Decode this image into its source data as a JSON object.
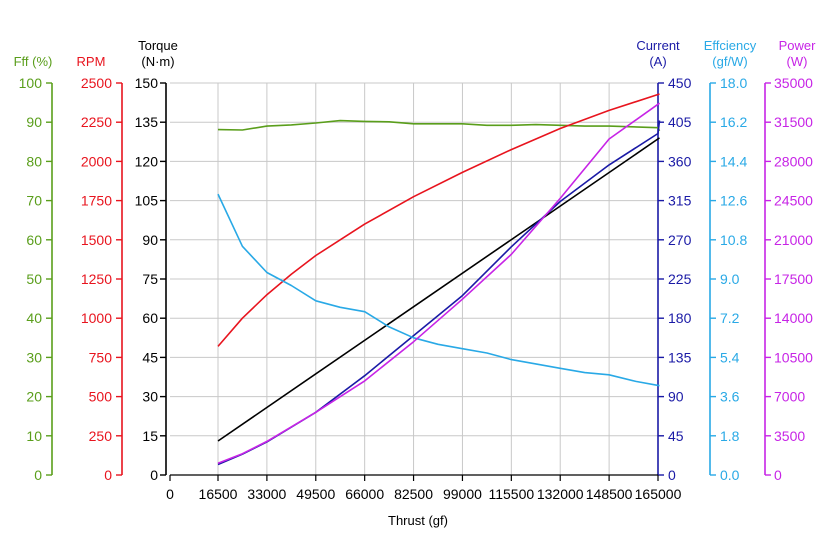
{
  "chart_data": {
    "type": "line",
    "xlabel": "Thrust (gf)",
    "x_ticks": [
      "0",
      "16500",
      "33000",
      "49500",
      "66000",
      "82500",
      "99000",
      "115500",
      "132000",
      "148500",
      "165000"
    ],
    "x_data_start": 16500,
    "x_data_end": 165000,
    "grid": true,
    "axes": [
      {
        "id": "fff",
        "title_lines": [
          "Fff (%)"
        ],
        "color": "#5a9e1b",
        "min": 0,
        "max": 100,
        "ticks": [
          "0",
          "10",
          "20",
          "30",
          "40",
          "50",
          "60",
          "70",
          "80",
          "90",
          "100"
        ]
      },
      {
        "id": "rpm",
        "title_lines": [
          "RPM"
        ],
        "color": "#e8141e",
        "min": 0,
        "max": 2500,
        "ticks": [
          "0",
          "250",
          "500",
          "750",
          "1000",
          "1250",
          "1500",
          "1750",
          "2000",
          "2250",
          "2500"
        ]
      },
      {
        "id": "torque",
        "title_lines": [
          "Torque",
          "(N·m)"
        ],
        "color": "#000000",
        "min": 0,
        "max": 150,
        "ticks": [
          "0",
          "15",
          "30",
          "45",
          "60",
          "75",
          "90",
          "105",
          "120",
          "135",
          "150"
        ]
      },
      {
        "id": "current",
        "title_lines": [
          "Current",
          "(A)"
        ],
        "color": "#1a1aa6",
        "min": 0,
        "max": 450,
        "ticks": [
          "0",
          "45",
          "90",
          "135",
          "180",
          "225",
          "270",
          "315",
          "360",
          "405",
          "450"
        ]
      },
      {
        "id": "efficiency",
        "title_lines": [
          "Effciency",
          "(gf/W)"
        ],
        "color": "#29a9e6",
        "min": 0,
        "max": 18,
        "ticks": [
          "0.0",
          "1.8",
          "3.6",
          "5.4",
          "7.2",
          "9.0",
          "10.8",
          "12.6",
          "14.4",
          "16.2",
          "18.0"
        ]
      },
      {
        "id": "power",
        "title_lines": [
          "Power",
          "(W)"
        ],
        "color": "#c724e6",
        "min": 0,
        "max": 35000,
        "ticks": [
          "0",
          "3500",
          "7000",
          "10500",
          "14000",
          "17500",
          "21000",
          "24500",
          "28000",
          "31500",
          "35000"
        ]
      }
    ],
    "series": [
      {
        "axis": "fff",
        "color": "#5a9e1b",
        "x": [
          16500,
          24750,
          33000,
          41250,
          49500,
          57750,
          66000,
          74250,
          82500,
          90750,
          99000,
          107250,
          115500,
          123750,
          132000,
          140250,
          148500,
          165000,
          165500
        ],
        "y": [
          88.1,
          88.0,
          89.0,
          89.3,
          89.8,
          90.4,
          90.2,
          90.1,
          89.6,
          89.6,
          89.6,
          89.2,
          89.2,
          89.4,
          89.2,
          89.0,
          89.0,
          88.6,
          87.8
        ]
      },
      {
        "axis": "rpm",
        "color": "#e8141e",
        "x": [
          16500,
          24750,
          33000,
          41250,
          49500,
          57750,
          66000,
          82500,
          99000,
          115500,
          132000,
          148500,
          165500
        ],
        "y": [
          820,
          1000,
          1150,
          1280,
          1400,
          1500,
          1600,
          1775,
          1930,
          2075,
          2210,
          2325,
          2430
        ]
      },
      {
        "axis": "torque",
        "color": "#000000",
        "x": [
          16500,
          165500
        ],
        "y": [
          13,
          129
        ]
      },
      {
        "axis": "current",
        "color": "#1a1aa6",
        "x": [
          16500,
          24750,
          33000,
          49500,
          66000,
          82500,
          99000,
          115500,
          132000,
          148500,
          165000,
          165500
        ],
        "y": [
          12,
          24,
          38,
          72,
          114,
          160,
          206,
          262,
          314,
          356,
          392,
          407
        ]
      },
      {
        "axis": "efficiency",
        "color": "#29a9e6",
        "x": [
          16500,
          24750,
          33000,
          41250,
          49500,
          57750,
          66000,
          74250,
          82500,
          90750,
          99000,
          107250,
          115500,
          123750,
          132000,
          140250,
          148500,
          157500,
          165500
        ],
        "y": [
          12.9,
          10.5,
          9.3,
          8.7,
          8.0,
          7.7,
          7.5,
          6.8,
          6.3,
          6.0,
          5.8,
          5.6,
          5.3,
          5.1,
          4.9,
          4.7,
          4.6,
          4.3,
          4.1
        ]
      },
      {
        "axis": "power",
        "color": "#c724e6",
        "x": [
          16500,
          24750,
          33000,
          49500,
          66000,
          82500,
          99000,
          115500,
          132000,
          148500,
          165500
        ],
        "y": [
          1050,
          1900,
          3000,
          5600,
          8400,
          11900,
          15700,
          19700,
          24700,
          30000,
          33200
        ]
      }
    ]
  }
}
